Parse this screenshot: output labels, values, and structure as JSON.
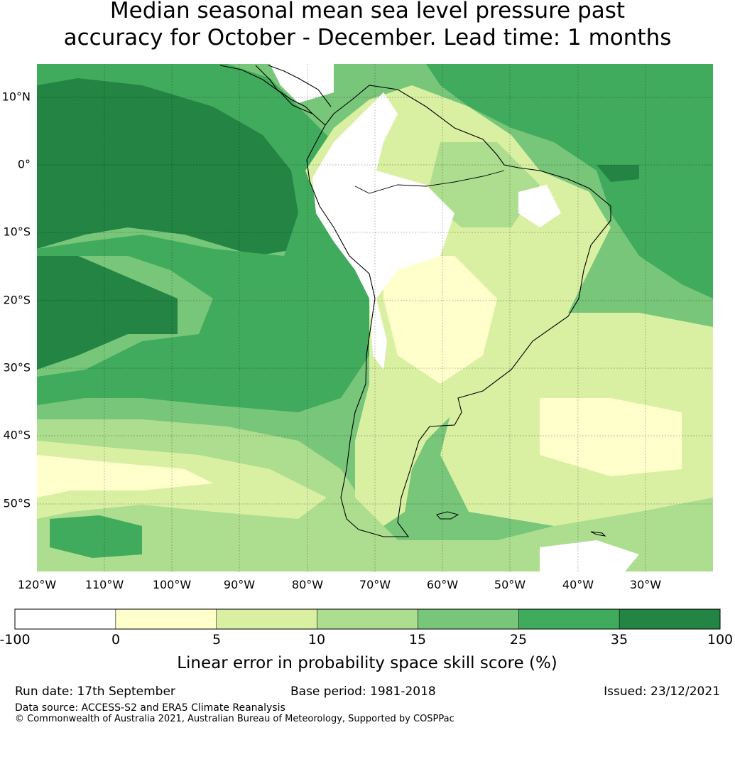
{
  "title": {
    "line1": "Median seasonal mean sea level pressure past",
    "line2": "accuracy for October - December. Lead time: 1 months"
  },
  "map": {
    "lat_labels": [
      "10°N",
      "0°",
      "10°S",
      "20°S",
      "30°S",
      "40°S",
      "50°S"
    ],
    "lon_labels": [
      "120°W",
      "110°W",
      "100°W",
      "90°W",
      "80°W",
      "70°W",
      "60°W",
      "50°W",
      "40°W",
      "30°W"
    ],
    "extent": {
      "lon": [
        -120,
        -20
      ],
      "lat": [
        -60,
        15
      ]
    },
    "gridlines": true,
    "region": "South America"
  },
  "colorbar": {
    "tick_labels": [
      "-100",
      "0",
      "5",
      "10",
      "15",
      "25",
      "35",
      "100"
    ],
    "colors": [
      "#ffffff",
      "#ffffcc",
      "#d9f0a3",
      "#addd8e",
      "#78c679",
      "#41ab5d",
      "#238443"
    ],
    "label": "Linear error in probability space skill score (%)"
  },
  "footer": {
    "run_date": "Run date: 17th September",
    "base_period": "Base period: 1981-2018",
    "issued": "Issued: 23/12/2021",
    "data_source": "Data source: ACCESS-S2 and ERA5 Climate Reanalysis",
    "copyright": "© Commonwealth of Australia 2021, Australian Bureau of Meteorology, Supported by COSPPac"
  }
}
